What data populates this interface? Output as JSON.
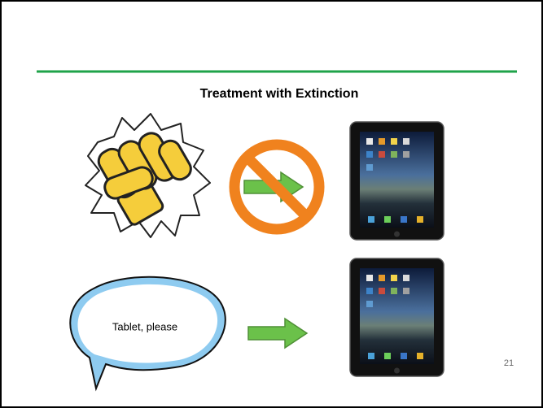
{
  "slide": {
    "title": "Treatment with Extinction",
    "speech": "Tablet, please",
    "page_number": "21"
  }
}
